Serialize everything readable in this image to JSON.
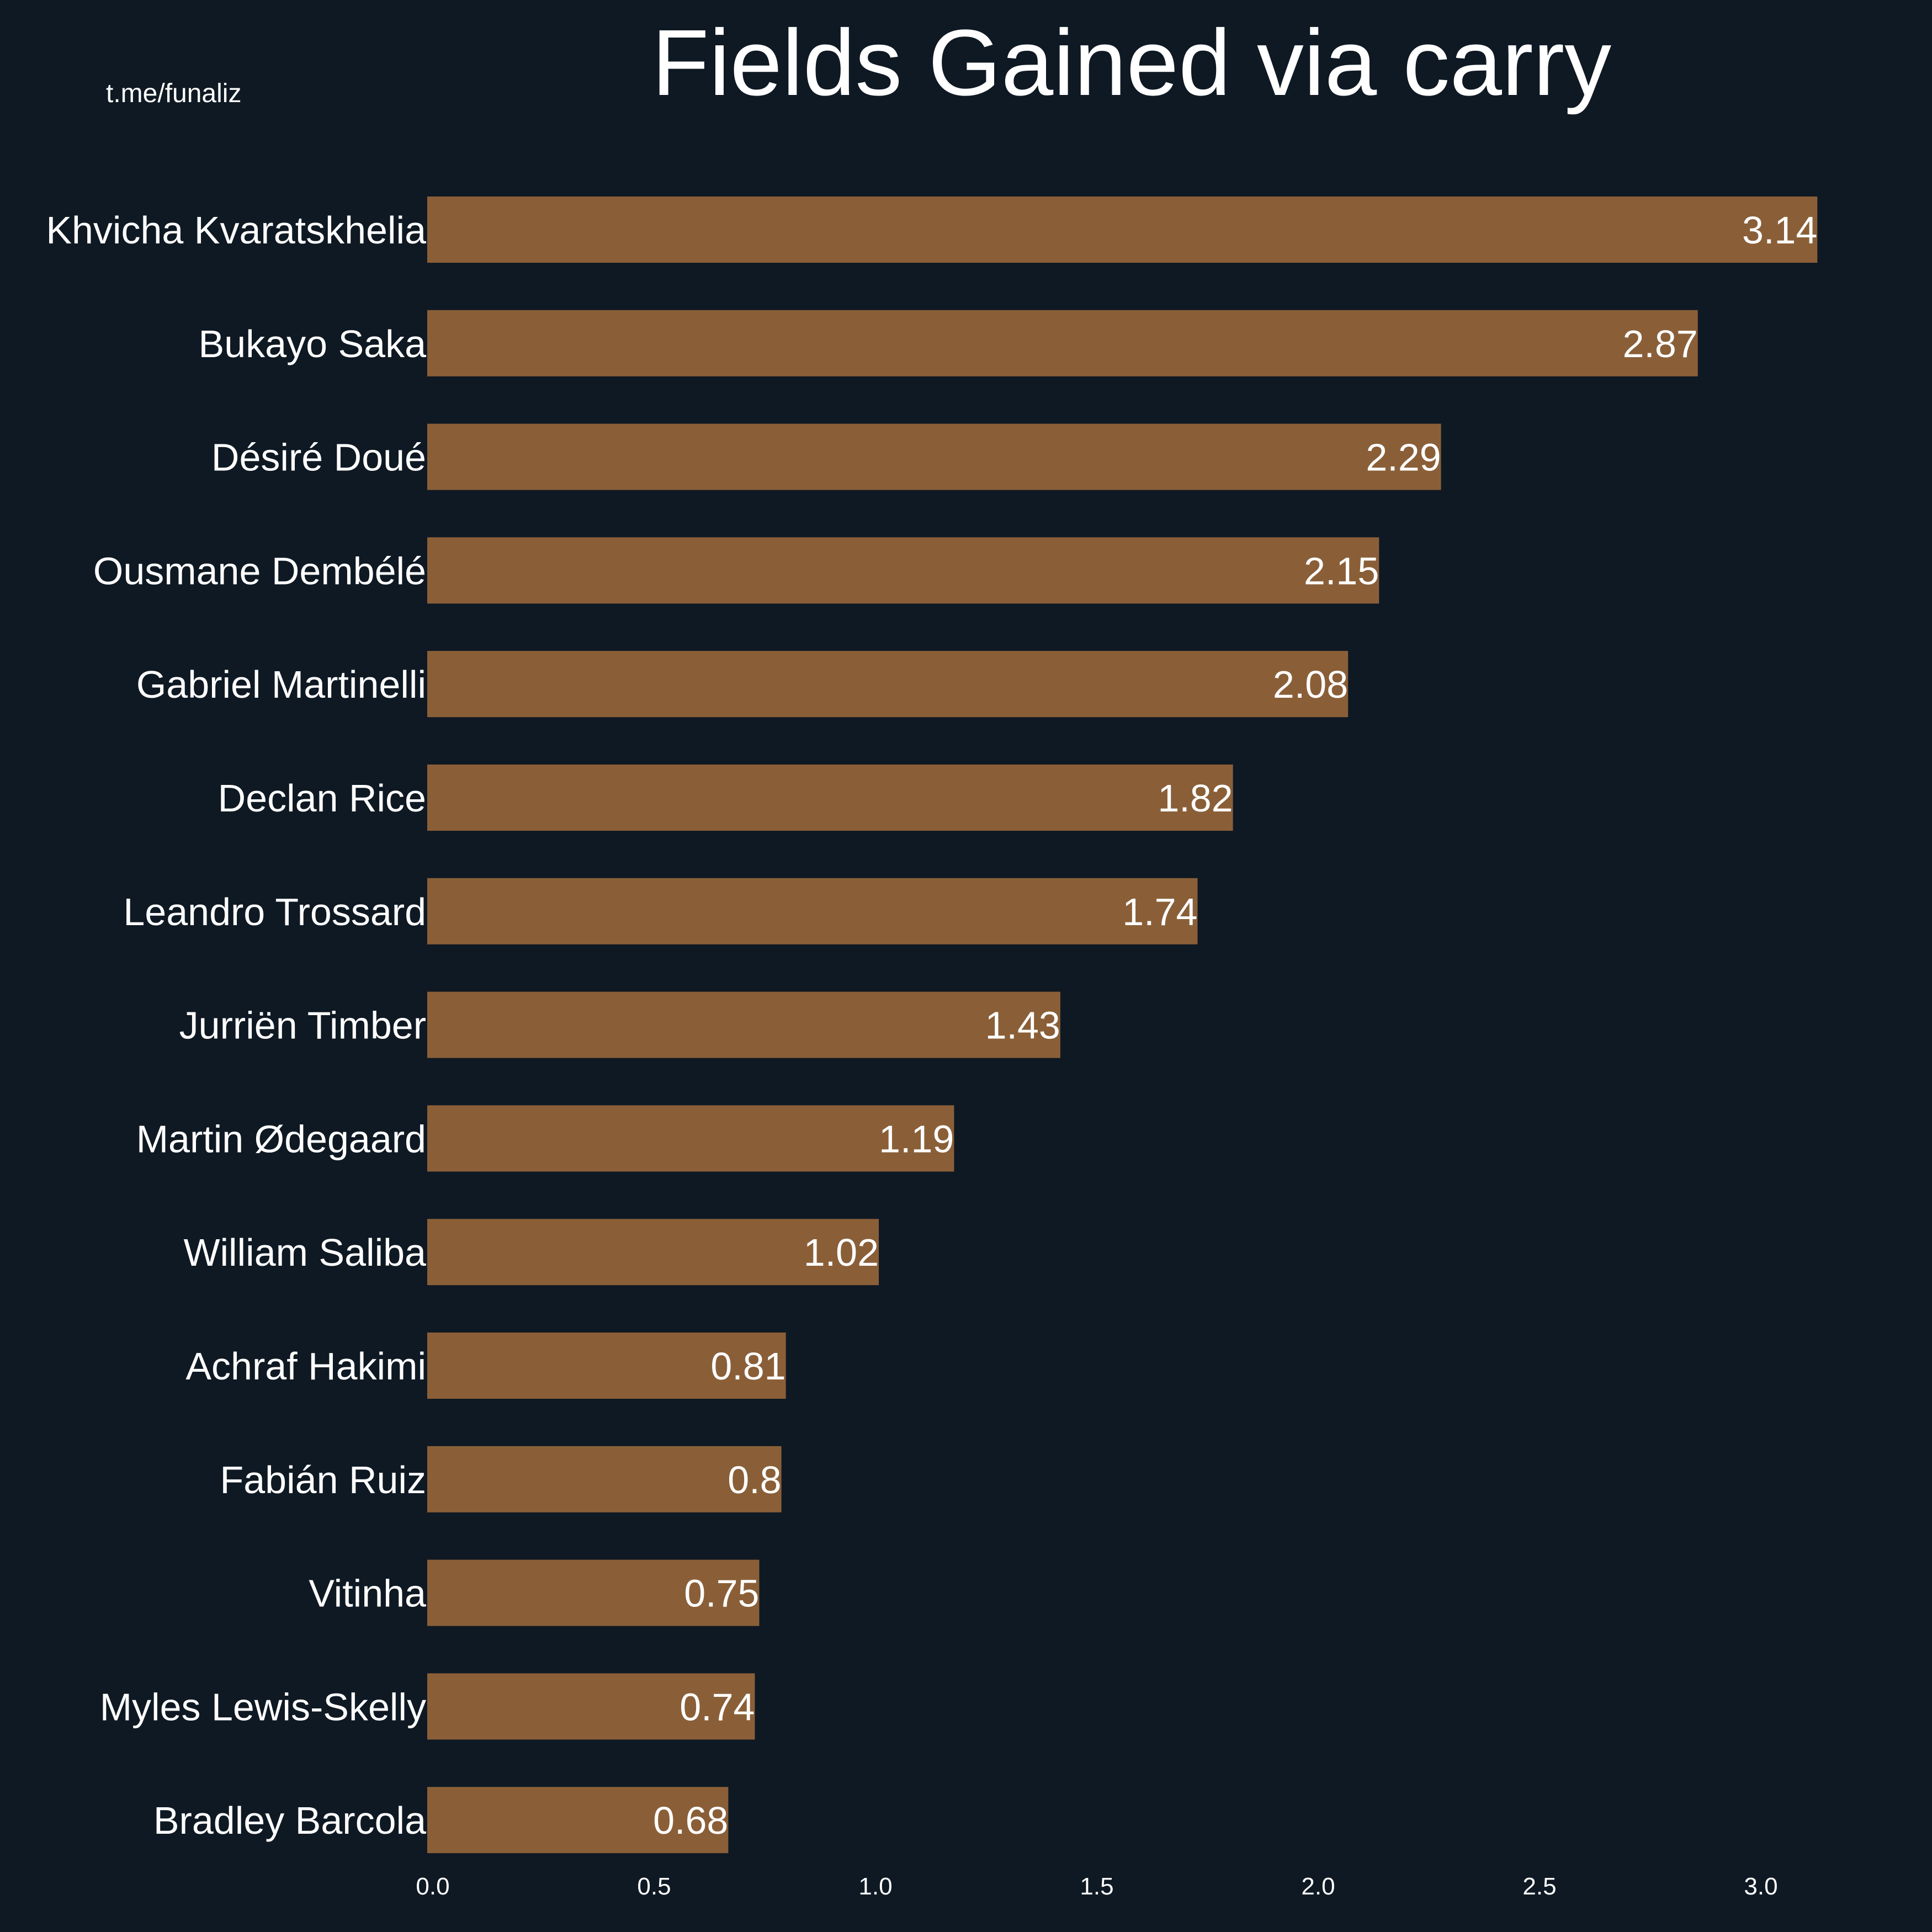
{
  "watermark": "t.me/funaliz",
  "colors": {
    "background": "#0f1923",
    "bar": "#8a5f38",
    "text": "#ffffff"
  },
  "chart_data": {
    "type": "bar",
    "orientation": "horizontal",
    "title": "Fields Gained via carry",
    "xlabel": "",
    "ylabel": "",
    "xlim": [
      0,
      3.3
    ],
    "grid": false,
    "categories": [
      "Khvicha Kvaratskhelia",
      "Bukayo Saka",
      "Désiré Doué",
      "Ousmane Dembélé",
      "Gabriel Martinelli",
      "Declan Rice",
      "Leandro Trossard",
      "Jurriën Timber",
      "Martin Ødegaard",
      "William Saliba",
      "Achraf Hakimi",
      "Fabián Ruiz",
      "Vitinha",
      "Myles Lewis-Skelly",
      "Bradley Barcola"
    ],
    "values": [
      3.14,
      2.87,
      2.29,
      2.15,
      2.08,
      1.82,
      1.74,
      1.43,
      1.19,
      1.02,
      0.81,
      0.8,
      0.75,
      0.74,
      0.68
    ],
    "value_labels": [
      "3.14",
      "2.87",
      "2.29",
      "2.15",
      "2.08",
      "1.82",
      "1.74",
      "1.43",
      "1.19",
      "1.02",
      "0.81",
      "0.8",
      "0.75",
      "0.74",
      "0.68"
    ],
    "x_ticks": [
      {
        "value": 0.0,
        "label": "0.0"
      },
      {
        "value": 0.5,
        "label": "0.5"
      },
      {
        "value": 1.0,
        "label": "1.0"
      },
      {
        "value": 1.5,
        "label": "1.5"
      },
      {
        "value": 2.0,
        "label": "2.0"
      },
      {
        "value": 2.5,
        "label": "2.5"
      },
      {
        "value": 3.0,
        "label": "3.0"
      }
    ]
  }
}
